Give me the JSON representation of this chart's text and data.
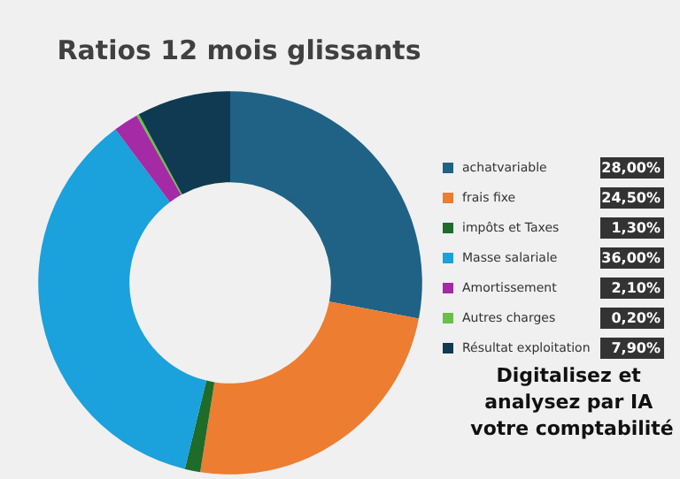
{
  "chart_data": {
    "type": "donut",
    "title": "Ratios 12 mois glissants",
    "categories": [
      "achatvariable",
      "frais fixe",
      "impôts et Taxes",
      "Masse salariale",
      "Amortissement",
      "Autres charges",
      "Résultat exploitation"
    ],
    "values": [
      28,
      24.5,
      1.3,
      36,
      2.1,
      0.2,
      7.9
    ],
    "value_labels": [
      "28,00%",
      "24,50%",
      "1,30%",
      "36,00%",
      "2,10%",
      "0,20%",
      "7,90%"
    ],
    "colors": [
      "#1f6286",
      "#ed7d31",
      "#1e6b2a",
      "#1ba1db",
      "#a52aa5",
      "#6abf45",
      "#0f3a52"
    ],
    "legend": "right",
    "annotations": [
      "Digitalisez et analysez par IA votre comptabilité"
    ]
  }
}
